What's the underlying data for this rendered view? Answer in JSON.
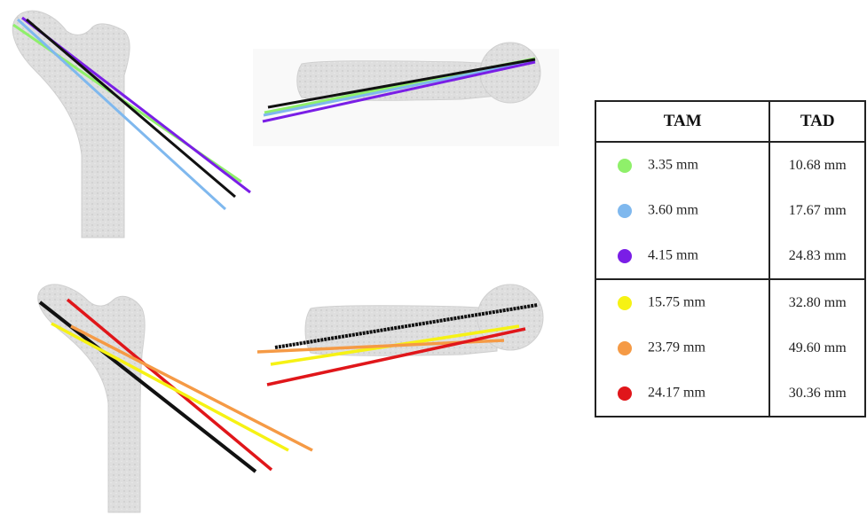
{
  "table": {
    "headers": {
      "tam": "TAM",
      "tad": "TAD"
    },
    "rows": [
      {
        "color": "#8ff06a",
        "tam": "3.35 mm",
        "tad": "10.68 mm"
      },
      {
        "color": "#7fb8ee",
        "tam": "3.60 mm",
        "tad": "17.67 mm"
      },
      {
        "color": "#7a1ee6",
        "tam": "4.15 mm",
        "tad": "24.83 mm"
      },
      {
        "color": "#f6f214",
        "tam": "15.75 mm",
        "tad": "32.80 mm"
      },
      {
        "color": "#f59a45",
        "tam": "23.79 mm",
        "tad": "49.60 mm"
      },
      {
        "color": "#e0161a",
        "tam": "24.17 mm",
        "tad": "30.36 mm"
      }
    ]
  },
  "panels": [
    {
      "view": "frontal",
      "screws": [
        "#8ff06a",
        "#7fb8ee",
        "#7a1ee6",
        "#111111"
      ]
    },
    {
      "view": "axial",
      "screws": [
        "#8ff06a",
        "#7fb8ee",
        "#7a1ee6",
        "#111111"
      ]
    },
    {
      "view": "frontal",
      "screws": [
        "#111111",
        "#e0161a",
        "#f6f214",
        "#f59a45"
      ]
    },
    {
      "view": "axial",
      "screws": [
        "#111111",
        "#f6f214",
        "#f59a45",
        "#e0161a"
      ]
    }
  ]
}
